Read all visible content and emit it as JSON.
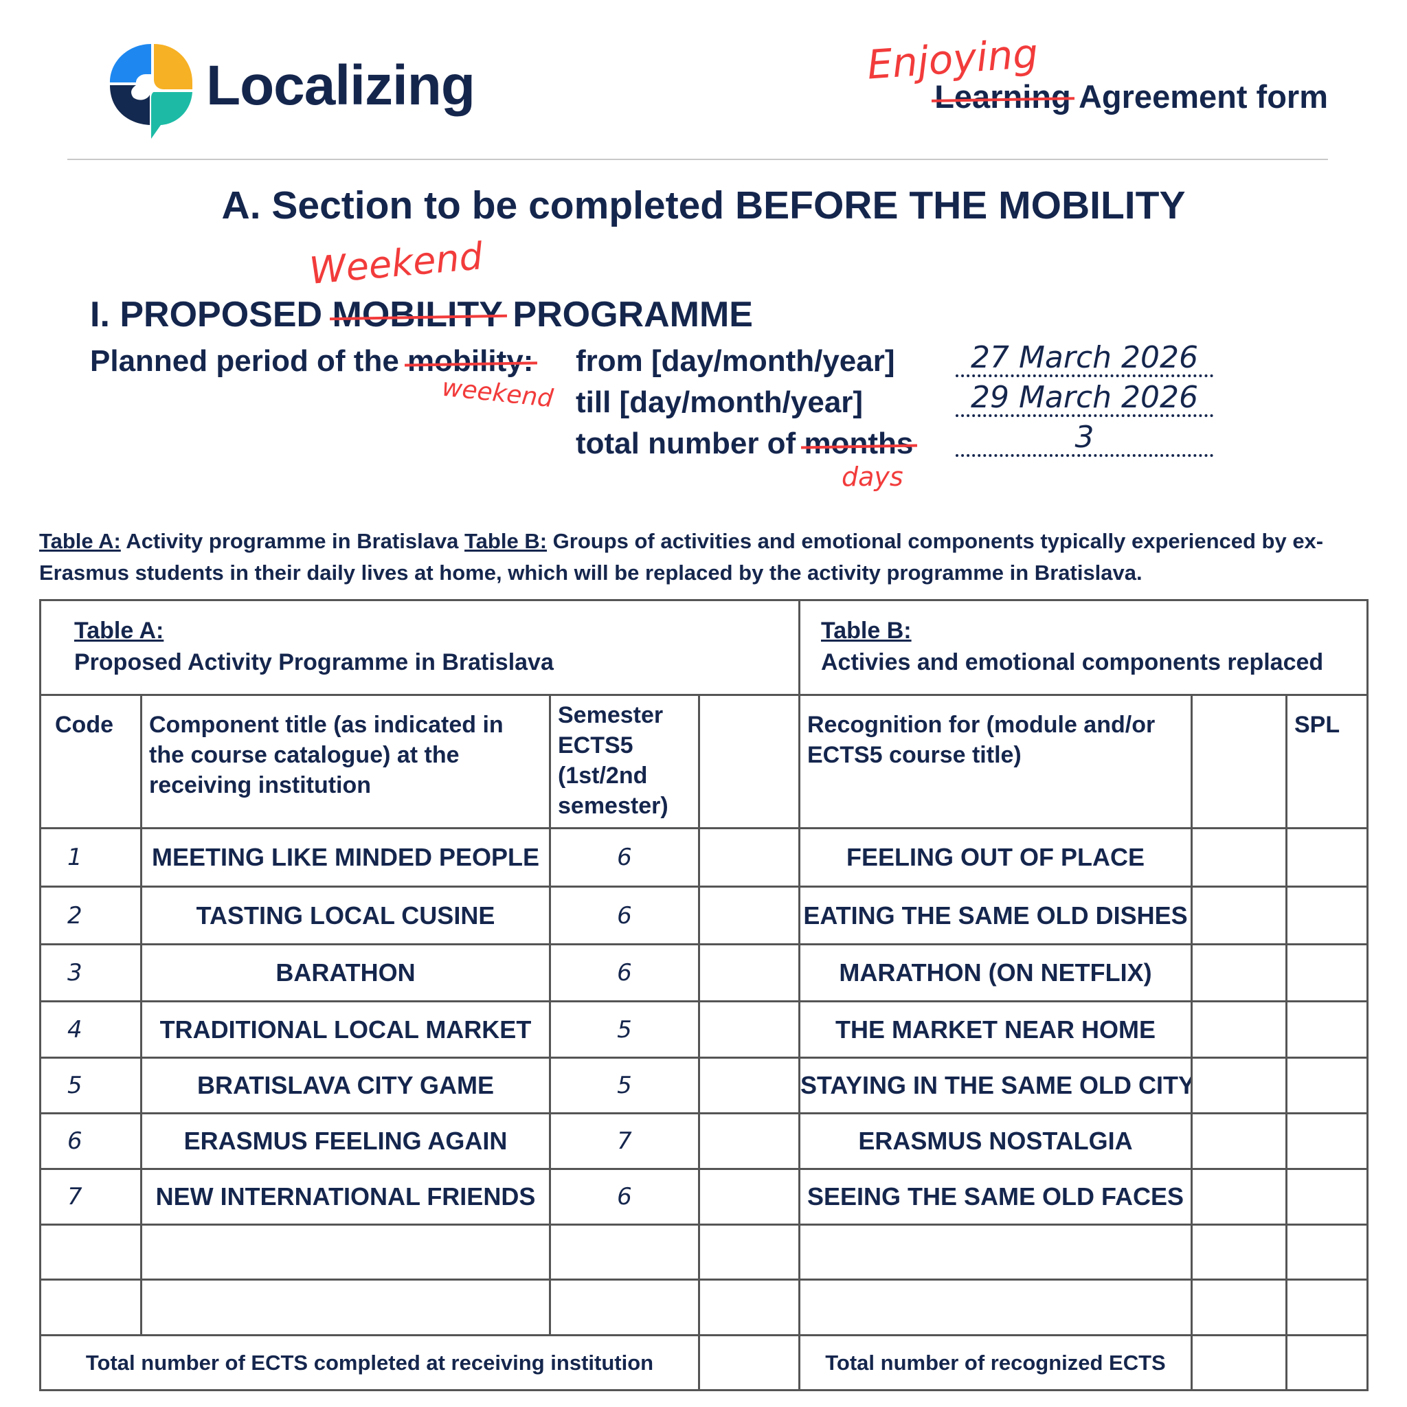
{
  "header": {
    "brand": "Localizing",
    "form_title_struck": "Learning",
    "form_title_rest": " Agreement form",
    "form_title_annotation": "Enjoying"
  },
  "section_title": "A. Section to be completed BEFORE THE MOBILITY",
  "programme": {
    "prefix": "I. PROPOSED ",
    "struck": "MOBILITY",
    "suffix": " PROGRAMME",
    "annotation": "Weekend"
  },
  "period": {
    "label_prefix": "Planned period of the ",
    "label_struck": "mobility:",
    "label_annotation": "weekend",
    "from_label": "from [day/month/year]",
    "from_value": "27 March 2026",
    "till_label": "till [day/month/year]",
    "till_value": "29 March 2026",
    "total_label_prefix": "total number of ",
    "total_label_struck": "months",
    "total_annotation": "days",
    "total_value": "3"
  },
  "caption": {
    "table_a_ref": "Table A:",
    "table_a_text": " Activity programme in Bratislava ",
    "table_b_ref": "Table B:",
    "table_b_text": " Groups of activities and emotional components typically experienced by ex-Erasmus students in their daily lives at home, which will be replaced by the activity programme in Bratislava."
  },
  "table": {
    "a_title": "Table A:",
    "a_subtitle": "Proposed Activity Programme in Bratislava",
    "b_title": "Table B:",
    "b_subtitle": "Activies and emotional components replaced",
    "columns": {
      "code": "Code",
      "component": "Component title (as indicated in the course catalogue) at the receiving institution",
      "semester": "Semester ECTS5 (1st/2nd semester)",
      "recognition": "Recognition for (module and/or ECTS5 course title)",
      "spl": "SPL"
    },
    "rows": [
      {
        "code": "1",
        "component": "MEETING LIKE MINDED PEOPLE",
        "ects": "6",
        "replaced": "FEELING OUT OF PLACE"
      },
      {
        "code": "2",
        "component": "TASTING LOCAL CUSINE",
        "ects": "6",
        "replaced": "EATING THE SAME OLD DISHES"
      },
      {
        "code": "3",
        "component": "BARATHON",
        "ects": "6",
        "replaced": "MARATHON (ON NETFLIX)"
      },
      {
        "code": "4",
        "component": "TRADITIONAL LOCAL MARKET",
        "ects": "5",
        "replaced": "THE MARKET NEAR HOME"
      },
      {
        "code": "5",
        "component": "BRATISLAVA CITY GAME",
        "ects": "5",
        "replaced": "STAYING IN THE SAME OLD CITY"
      },
      {
        "code": "6",
        "component": "ERASMUS FEELING AGAIN",
        "ects": "7",
        "replaced": "ERASMUS NOSTALGIA"
      },
      {
        "code": "7",
        "component": "NEW INTERNATIONAL FRIENDS",
        "ects": "6",
        "replaced": "SEEING THE SAME OLD FACES"
      }
    ],
    "footer_a": "Total number of ECTS completed at receiving institution",
    "footer_b": "Total number of recognized ECTS"
  },
  "colors": {
    "navy": "#15264d",
    "annotation_red": "#f23b3b",
    "logo_blue": "#1e88f0",
    "logo_yellow": "#f7b125",
    "logo_teal": "#1dbba6",
    "logo_navy": "#14294f"
  }
}
